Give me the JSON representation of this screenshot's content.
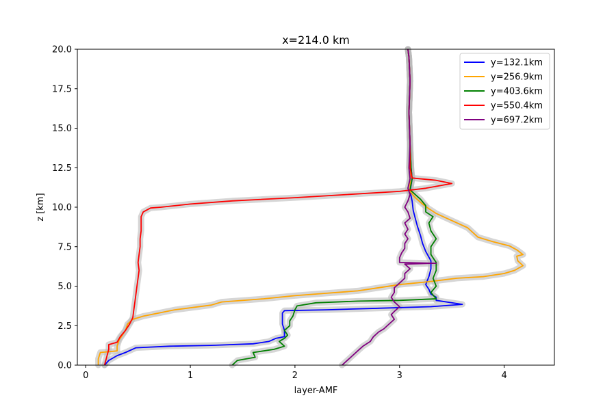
{
  "chart_data": {
    "type": "line",
    "title": "x=214.0 km",
    "xlabel": "layer-AMF",
    "ylabel": "z [km]",
    "xlim": [
      -0.08,
      4.48
    ],
    "ylim": [
      0,
      20
    ],
    "xticks": [
      0,
      1,
      2,
      3,
      4
    ],
    "xtick_labels": [
      "0",
      "1",
      "2",
      "3",
      "4"
    ],
    "yticks": [
      0,
      2.5,
      5,
      7.5,
      10,
      12.5,
      15,
      17.5,
      20
    ],
    "ytick_labels": [
      "0.0",
      "2.5",
      "5.0",
      "7.5",
      "10.0",
      "12.5",
      "15.0",
      "17.5",
      "20.0"
    ],
    "grid": false,
    "legend_position": "top-right",
    "uncertainty_band_color": "#bbbbbb",
    "series": [
      {
        "name": "y=132.1km",
        "color": "#0000ff",
        "points": [
          [
            0.18,
            0
          ],
          [
            0.22,
            0.3
          ],
          [
            0.3,
            0.6
          ],
          [
            0.38,
            0.8
          ],
          [
            0.48,
            1.1
          ],
          [
            0.8,
            1.2
          ],
          [
            1.2,
            1.25
          ],
          [
            1.6,
            1.35
          ],
          [
            1.75,
            1.5
          ],
          [
            1.82,
            1.7
          ],
          [
            1.9,
            1.8
          ],
          [
            1.9,
            2.2
          ],
          [
            1.88,
            2.6
          ],
          [
            1.88,
            3.0
          ],
          [
            1.88,
            3.3
          ],
          [
            1.9,
            3.45
          ],
          [
            2.3,
            3.5
          ],
          [
            2.8,
            3.6
          ],
          [
            3.3,
            3.7
          ],
          [
            3.6,
            3.85
          ],
          [
            3.35,
            4.1
          ],
          [
            3.35,
            4.3
          ],
          [
            3.3,
            4.5
          ],
          [
            3.28,
            4.8
          ],
          [
            3.25,
            5.1
          ],
          [
            3.28,
            5.6
          ],
          [
            3.3,
            6.1
          ],
          [
            3.3,
            6.6
          ],
          [
            3.25,
            7.2
          ],
          [
            3.22,
            7.7
          ],
          [
            3.2,
            8.2
          ],
          [
            3.17,
            8.8
          ],
          [
            3.15,
            9.3
          ],
          [
            3.13,
            9.8
          ],
          [
            3.12,
            10.4
          ],
          [
            3.1,
            11.0
          ],
          [
            3.12,
            11.8
          ],
          [
            3.11,
            12.5
          ],
          [
            3.1,
            14
          ],
          [
            3.09,
            16
          ],
          [
            3.1,
            18
          ],
          [
            3.09,
            19.5
          ],
          [
            3.08,
            20
          ]
        ]
      },
      {
        "name": "y=256.9km",
        "color": "#ffa500",
        "points": [
          [
            0.12,
            0
          ],
          [
            0.12,
            0.4
          ],
          [
            0.14,
            0.8
          ],
          [
            0.3,
            0.9
          ],
          [
            0.3,
            1.2
          ],
          [
            0.32,
            1.6
          ],
          [
            0.35,
            1.9
          ],
          [
            0.38,
            2.2
          ],
          [
            0.4,
            2.6
          ],
          [
            0.45,
            2.9
          ],
          [
            0.55,
            3.1
          ],
          [
            0.7,
            3.3
          ],
          [
            0.85,
            3.5
          ],
          [
            1.2,
            3.8
          ],
          [
            1.3,
            4.0
          ],
          [
            1.7,
            4.2
          ],
          [
            2.0,
            4.4
          ],
          [
            2.3,
            4.55
          ],
          [
            2.6,
            4.7
          ],
          [
            2.8,
            4.9
          ],
          [
            3.0,
            5.1
          ],
          [
            3.3,
            5.3
          ],
          [
            3.55,
            5.5
          ],
          [
            3.8,
            5.6
          ],
          [
            4.0,
            5.8
          ],
          [
            4.1,
            6.0
          ],
          [
            4.18,
            6.3
          ],
          [
            4.13,
            6.6
          ],
          [
            4.12,
            6.9
          ],
          [
            4.18,
            7.0
          ],
          [
            4.12,
            7.3
          ],
          [
            4.05,
            7.55
          ],
          [
            3.9,
            7.8
          ],
          [
            3.75,
            8.1
          ],
          [
            3.7,
            8.4
          ],
          [
            3.65,
            8.7
          ],
          [
            3.55,
            9.0
          ],
          [
            3.45,
            9.3
          ],
          [
            3.35,
            9.6
          ],
          [
            3.28,
            9.9
          ],
          [
            3.22,
            10.2
          ],
          [
            3.15,
            10.6
          ],
          [
            3.1,
            11.0
          ],
          [
            3.1,
            11.7
          ],
          [
            3.11,
            12.5
          ],
          [
            3.1,
            14
          ],
          [
            3.09,
            16
          ],
          [
            3.1,
            18
          ],
          [
            3.09,
            19.5
          ],
          [
            3.08,
            20
          ]
        ]
      },
      {
        "name": "y=403.6km",
        "color": "#008000",
        "points": [
          [
            1.4,
            0
          ],
          [
            1.45,
            0.3
          ],
          [
            1.62,
            0.5
          ],
          [
            1.6,
            0.8
          ],
          [
            1.8,
            1.0
          ],
          [
            1.9,
            1.2
          ],
          [
            1.85,
            1.5
          ],
          [
            1.9,
            1.7
          ],
          [
            1.93,
            1.9
          ],
          [
            1.9,
            2.2
          ],
          [
            1.95,
            2.5
          ],
          [
            1.95,
            2.8
          ],
          [
            1.98,
            3.1
          ],
          [
            2.0,
            3.5
          ],
          [
            2.02,
            3.75
          ],
          [
            2.2,
            3.95
          ],
          [
            2.6,
            4.05
          ],
          [
            3.0,
            4.1
          ],
          [
            3.35,
            4.2
          ],
          [
            3.3,
            4.6
          ],
          [
            3.35,
            5.0
          ],
          [
            3.32,
            5.5
          ],
          [
            3.35,
            6.0
          ],
          [
            3.35,
            6.5
          ],
          [
            3.3,
            7.0
          ],
          [
            3.3,
            7.5
          ],
          [
            3.35,
            8.0
          ],
          [
            3.3,
            8.5
          ],
          [
            3.28,
            9.0
          ],
          [
            3.32,
            9.4
          ],
          [
            3.25,
            9.7
          ],
          [
            3.25,
            10.1
          ],
          [
            3.2,
            10.5
          ],
          [
            3.15,
            10.8
          ],
          [
            3.1,
            11.1
          ],
          [
            3.12,
            11.8
          ],
          [
            3.11,
            12.5
          ],
          [
            3.1,
            14
          ],
          [
            3.09,
            16
          ],
          [
            3.1,
            18
          ],
          [
            3.09,
            19.5
          ],
          [
            3.08,
            20
          ]
        ]
      },
      {
        "name": "y=550.4km",
        "color": "#ff0000",
        "points": [
          [
            0.18,
            0
          ],
          [
            0.2,
            0.5
          ],
          [
            0.22,
            1.0
          ],
          [
            0.22,
            1.3
          ],
          [
            0.3,
            1.45
          ],
          [
            0.33,
            1.8
          ],
          [
            0.38,
            2.2
          ],
          [
            0.42,
            2.6
          ],
          [
            0.45,
            3.0
          ],
          [
            0.46,
            3.5
          ],
          [
            0.47,
            4.0
          ],
          [
            0.48,
            4.5
          ],
          [
            0.49,
            5.0
          ],
          [
            0.5,
            5.5
          ],
          [
            0.51,
            6.0
          ],
          [
            0.5,
            6.5
          ],
          [
            0.51,
            7.0
          ],
          [
            0.52,
            7.5
          ],
          [
            0.52,
            8.0
          ],
          [
            0.53,
            8.5
          ],
          [
            0.53,
            9.0
          ],
          [
            0.53,
            9.4
          ],
          [
            0.55,
            9.7
          ],
          [
            0.62,
            9.95
          ],
          [
            0.72,
            10.0
          ],
          [
            1.0,
            10.2
          ],
          [
            1.4,
            10.4
          ],
          [
            2.0,
            10.6
          ],
          [
            2.5,
            10.8
          ],
          [
            3.0,
            11.0
          ],
          [
            3.25,
            11.2
          ],
          [
            3.5,
            11.5
          ],
          [
            3.35,
            11.7
          ],
          [
            3.12,
            11.85
          ],
          [
            3.1,
            12.5
          ],
          [
            3.1,
            14
          ],
          [
            3.09,
            16
          ],
          [
            3.1,
            18
          ],
          [
            3.09,
            19.5
          ],
          [
            3.08,
            20
          ]
        ]
      },
      {
        "name": "y=697.2km",
        "color": "#800080",
        "points": [
          [
            2.45,
            0
          ],
          [
            2.5,
            0.3
          ],
          [
            2.55,
            0.6
          ],
          [
            2.6,
            0.9
          ],
          [
            2.65,
            1.2
          ],
          [
            2.72,
            1.5
          ],
          [
            2.75,
            1.8
          ],
          [
            2.8,
            2.1
          ],
          [
            2.85,
            2.3
          ],
          [
            2.9,
            2.6
          ],
          [
            2.95,
            2.9
          ],
          [
            2.92,
            3.2
          ],
          [
            2.95,
            3.4
          ],
          [
            3.0,
            3.7
          ],
          [
            2.95,
            4.0
          ],
          [
            2.92,
            4.3
          ],
          [
            2.95,
            4.6
          ],
          [
            2.95,
            4.9
          ],
          [
            3.0,
            5.2
          ],
          [
            3.05,
            5.5
          ],
          [
            3.05,
            5.8
          ],
          [
            3.1,
            6.1
          ],
          [
            3.05,
            6.4
          ],
          [
            3.35,
            6.45
          ],
          [
            3.0,
            6.5
          ],
          [
            3.0,
            6.8
          ],
          [
            3.02,
            7.1
          ],
          [
            3.05,
            7.4
          ],
          [
            3.05,
            7.7
          ],
          [
            3.08,
            8.0
          ],
          [
            3.05,
            8.3
          ],
          [
            3.08,
            8.6
          ],
          [
            3.05,
            9.0
          ],
          [
            3.1,
            9.3
          ],
          [
            3.08,
            9.7
          ],
          [
            3.05,
            10.0
          ],
          [
            3.08,
            10.4
          ],
          [
            3.1,
            10.8
          ],
          [
            3.08,
            11.2
          ],
          [
            3.1,
            11.8
          ],
          [
            3.09,
            12.5
          ],
          [
            3.1,
            14
          ],
          [
            3.09,
            16
          ],
          [
            3.1,
            18
          ],
          [
            3.09,
            19.5
          ],
          [
            3.08,
            20
          ]
        ]
      }
    ]
  }
}
